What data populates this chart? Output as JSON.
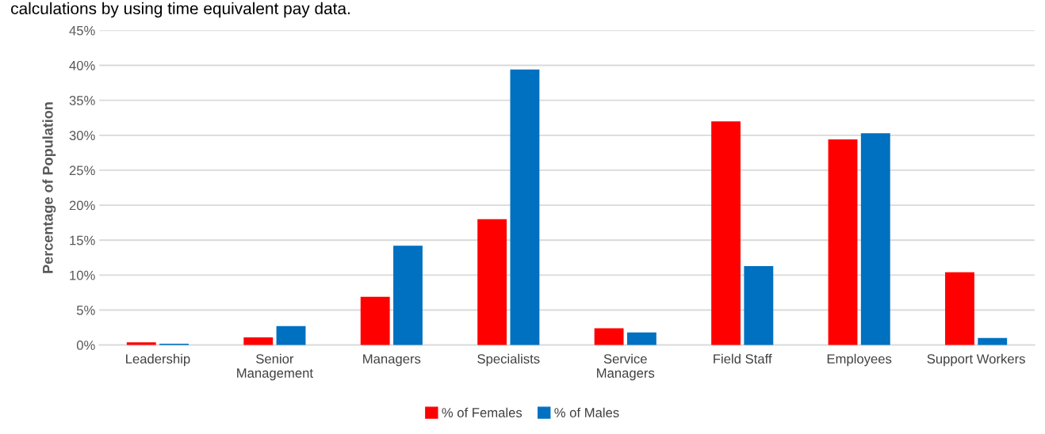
{
  "chart_data": {
    "type": "bar",
    "annotations": [
      "calculations by using time equivalent pay data."
    ],
    "ylabel": "Percentage of Population",
    "categories": [
      "Leadership",
      "Senior\nManagement",
      "Managers",
      "Specialists",
      "Service\nManagers",
      "Field Staff",
      "Employees",
      "Support Workers"
    ],
    "series": [
      {
        "name": "% of Females",
        "color": "#ff0000",
        "values": [
          0.4,
          1.1,
          6.9,
          18.0,
          2.4,
          32.0,
          29.4,
          10.4
        ]
      },
      {
        "name": "% of Males",
        "color": "#0070c0",
        "values": [
          0.2,
          2.7,
          14.2,
          39.4,
          1.8,
          11.3,
          30.3,
          1.0
        ]
      }
    ],
    "ylim": [
      0,
      45
    ],
    "yticks": [
      {
        "value": 0,
        "label": "0%"
      },
      {
        "value": 5,
        "label": "5%"
      },
      {
        "value": 10,
        "label": "10%"
      },
      {
        "value": 15,
        "label": "15%"
      },
      {
        "value": 20,
        "label": "20%"
      },
      {
        "value": 25,
        "label": "25%"
      },
      {
        "value": 30,
        "label": "30%"
      },
      {
        "value": 35,
        "label": "35%"
      },
      {
        "value": 40,
        "label": "40%"
      },
      {
        "value": 45,
        "label": "45%"
      }
    ],
    "grid": "y",
    "legend": "bottom"
  }
}
